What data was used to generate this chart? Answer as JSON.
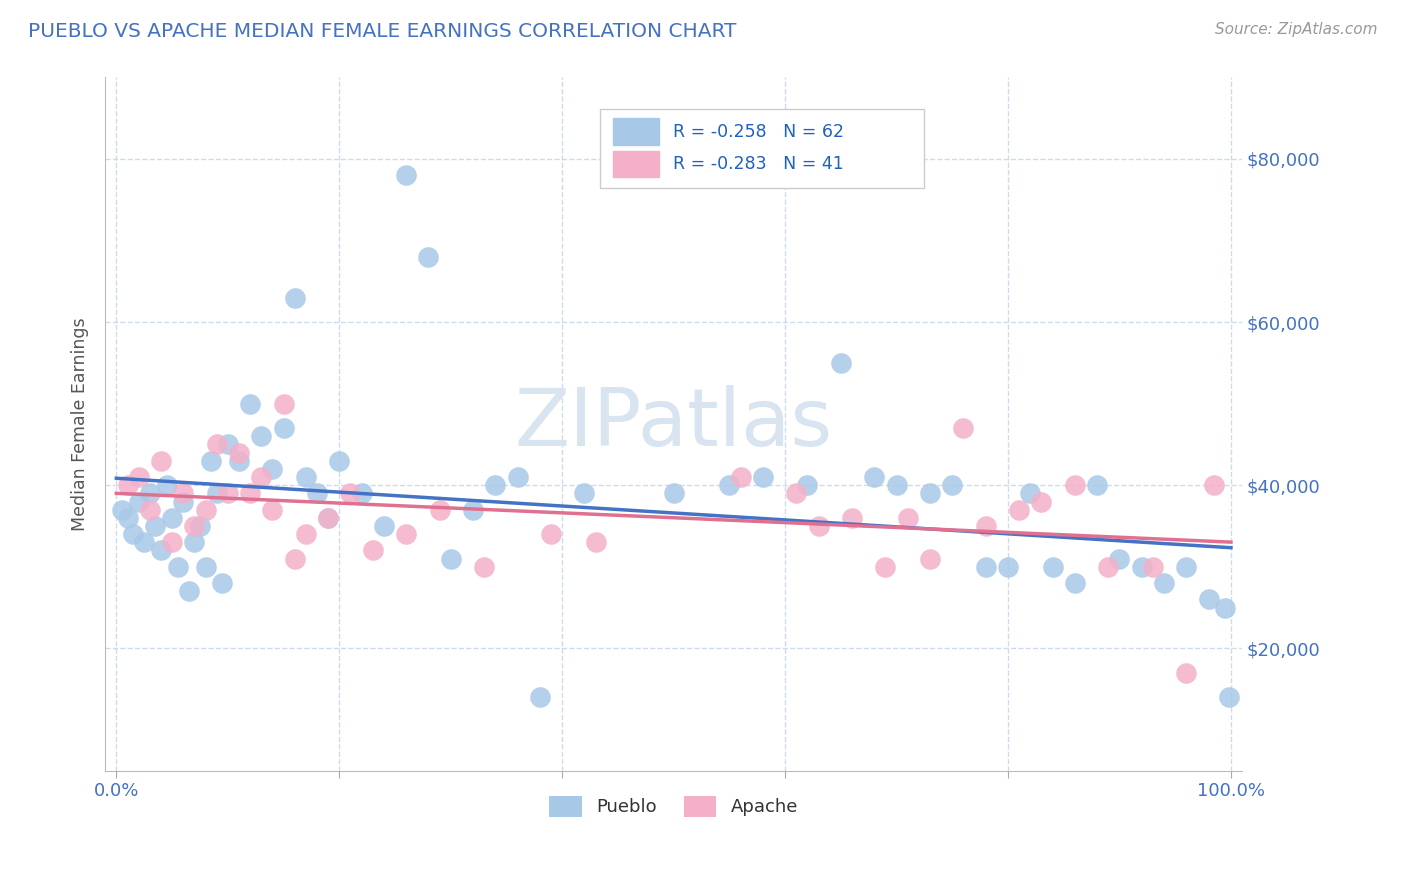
{
  "title": "PUEBLO VS APACHE MEDIAN FEMALE EARNINGS CORRELATION CHART",
  "source_text": "Source: ZipAtlas.com",
  "ylabel": "Median Female Earnings",
  "xlim": [
    -0.01,
    1.01
  ],
  "ylim": [
    5000,
    90000
  ],
  "yticks": [
    20000,
    40000,
    60000,
    80000
  ],
  "ytick_labels": [
    "$20,000",
    "$40,000",
    "$60,000",
    "$80,000"
  ],
  "pueblo_R": -0.258,
  "pueblo_N": 62,
  "apache_R": -0.283,
  "apache_N": 41,
  "pueblo_color": "#a8c8e8",
  "apache_color": "#f4b0c8",
  "pueblo_line_color": "#4472c4",
  "apache_line_color": "#e07090",
  "legend_R_color": "#2060c0",
  "title_color": "#4472c4",
  "axis_label_color": "#555555",
  "tick_color": "#4472c4",
  "background_color": "#ffffff",
  "grid_color": "#c8d8e8",
  "watermark_color": "#d8e4f0",
  "pueblo_x": [
    0.005,
    0.01,
    0.015,
    0.02,
    0.025,
    0.03,
    0.035,
    0.04,
    0.045,
    0.05,
    0.055,
    0.06,
    0.065,
    0.07,
    0.075,
    0.08,
    0.085,
    0.09,
    0.095,
    0.1,
    0.11,
    0.12,
    0.13,
    0.14,
    0.15,
    0.16,
    0.17,
    0.18,
    0.19,
    0.2,
    0.22,
    0.24,
    0.26,
    0.28,
    0.3,
    0.32,
    0.34,
    0.36,
    0.38,
    0.42,
    0.5,
    0.55,
    0.58,
    0.62,
    0.65,
    0.68,
    0.7,
    0.73,
    0.75,
    0.78,
    0.8,
    0.82,
    0.84,
    0.86,
    0.88,
    0.9,
    0.92,
    0.94,
    0.96,
    0.98,
    0.995,
    0.998
  ],
  "pueblo_y": [
    37000,
    36000,
    34000,
    38000,
    33000,
    39000,
    35000,
    32000,
    40000,
    36000,
    30000,
    38000,
    27000,
    33000,
    35000,
    30000,
    43000,
    39000,
    28000,
    45000,
    43000,
    50000,
    46000,
    42000,
    47000,
    63000,
    41000,
    39000,
    36000,
    43000,
    39000,
    35000,
    78000,
    68000,
    31000,
    37000,
    40000,
    41000,
    14000,
    39000,
    39000,
    40000,
    41000,
    40000,
    55000,
    41000,
    40000,
    39000,
    40000,
    30000,
    30000,
    39000,
    30000,
    28000,
    40000,
    31000,
    30000,
    28000,
    30000,
    26000,
    25000,
    14000
  ],
  "apache_x": [
    0.01,
    0.02,
    0.03,
    0.04,
    0.05,
    0.06,
    0.07,
    0.08,
    0.09,
    0.1,
    0.11,
    0.12,
    0.13,
    0.14,
    0.15,
    0.16,
    0.17,
    0.19,
    0.21,
    0.23,
    0.26,
    0.29,
    0.33,
    0.39,
    0.43,
    0.56,
    0.61,
    0.63,
    0.66,
    0.69,
    0.71,
    0.73,
    0.76,
    0.78,
    0.81,
    0.83,
    0.86,
    0.89,
    0.93,
    0.96,
    0.985
  ],
  "apache_y": [
    40000,
    41000,
    37000,
    43000,
    33000,
    39000,
    35000,
    37000,
    45000,
    39000,
    44000,
    39000,
    41000,
    37000,
    50000,
    31000,
    34000,
    36000,
    39000,
    32000,
    34000,
    37000,
    30000,
    34000,
    33000,
    41000,
    39000,
    35000,
    36000,
    30000,
    36000,
    31000,
    47000,
    35000,
    37000,
    38000,
    40000,
    30000,
    30000,
    17000,
    40000
  ]
}
